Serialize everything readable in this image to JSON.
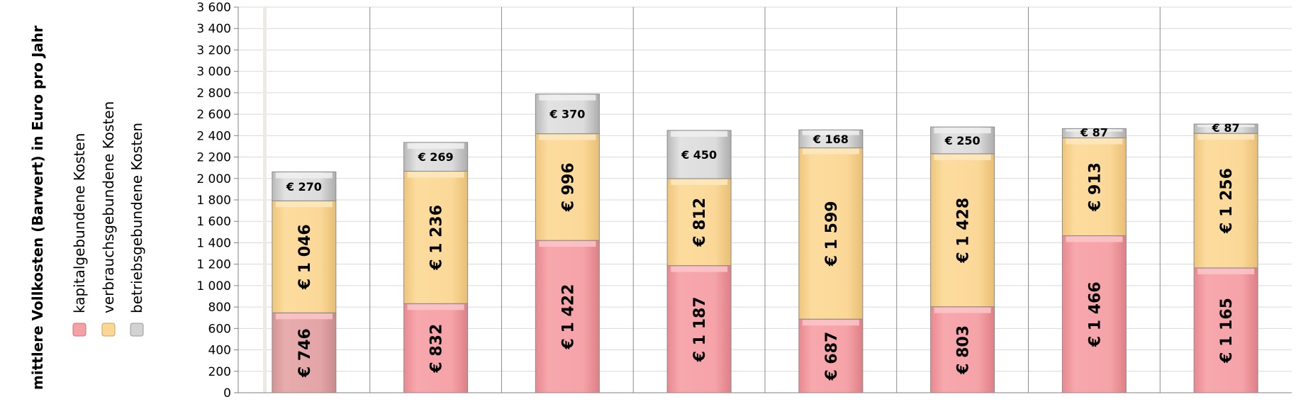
{
  "chart_data": {
    "type": "bar",
    "stacked": true,
    "orientation": "vertical",
    "ylabel": "mittlere Vollkosten (Barwert) in Euro pro Jahr",
    "ylim": [
      0,
      3600
    ],
    "y_ticks": [
      "0",
      "200",
      "400",
      "600",
      "800",
      "1 000",
      "1 200",
      "1 400",
      "1 600",
      "1 800",
      "2 000",
      "2 200",
      "2 400",
      "2 600",
      "2 800",
      "3 000",
      "3 200",
      "3 400",
      "3 600"
    ],
    "grid": true,
    "legend_position": "left",
    "series": [
      {
        "name": "kapitalgebundene Kosten",
        "color": "#F4A0A5",
        "values": [
          746,
          832,
          1422,
          1187,
          687,
          803,
          1466,
          1165
        ],
        "labels": [
          "€ 746",
          "€ 832",
          "€ 1 422",
          "€ 1 187",
          "€ 687",
          "€ 803",
          "€ 1 466",
          "€ 1 165"
        ]
      },
      {
        "name": "verbrauchsgebundene Kosten",
        "color": "#FAD795",
        "values": [
          1046,
          1236,
          996,
          812,
          1599,
          1428,
          913,
          1256
        ],
        "labels": [
          "€ 1 046",
          "€ 1 236",
          "€ 996",
          "€ 812",
          "€ 1 599",
          "€ 1 428",
          "€ 913",
          "€ 1 256"
        ]
      },
      {
        "name": "betriebsgebundene Kosten",
        "color": "#D2D2D2",
        "values": [
          270,
          269,
          370,
          450,
          168,
          250,
          87,
          87
        ],
        "labels": [
          "€ 270",
          "€ 269",
          "€ 370",
          "€ 450",
          "€ 168",
          "€ 250",
          "€ 87",
          "€ 87"
        ]
      }
    ]
  }
}
